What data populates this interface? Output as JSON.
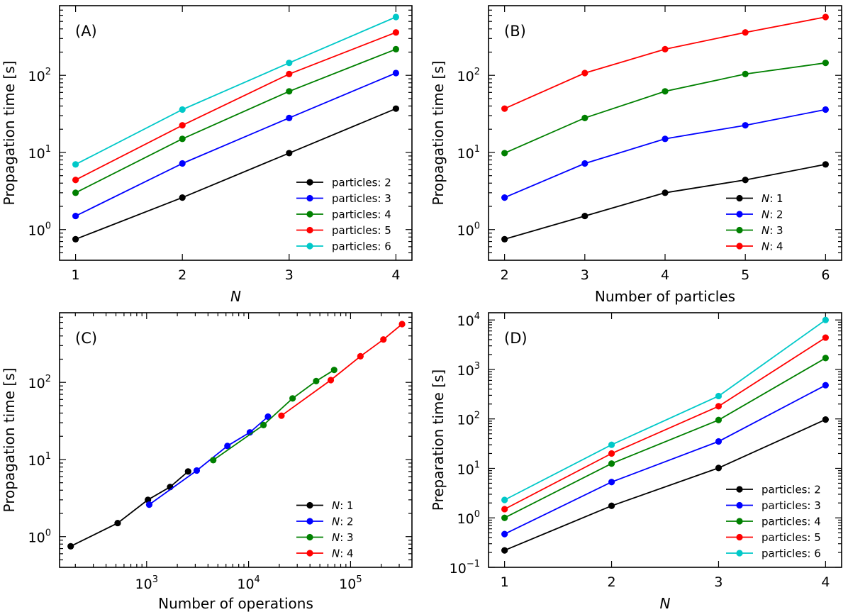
{
  "chart_data": [
    {
      "id": "A",
      "type": "line",
      "panel_label": "(A)",
      "xlabel": "N",
      "xlabel_italic": true,
      "ylabel": "Propagation time [s]",
      "xscale": "linear",
      "yscale": "log",
      "xlim": [
        0.85,
        4.15
      ],
      "ylim": [
        0.4,
        800
      ],
      "xticks": [
        {
          "v": 1,
          "label": "1"
        },
        {
          "v": 2,
          "label": "2"
        },
        {
          "v": 3,
          "label": "3"
        },
        {
          "v": 4,
          "label": "4"
        }
      ],
      "yticks": [
        {
          "v": 1,
          "base": "10",
          "exp": "0"
        },
        {
          "v": 10,
          "base": "10",
          "exp": "1"
        },
        {
          "v": 100,
          "base": "10",
          "exp": "2"
        }
      ],
      "legend_position": "lower-right",
      "series": [
        {
          "name": "particles: 2",
          "color": "#000000",
          "x": [
            1,
            2,
            3,
            4
          ],
          "y": [
            0.75,
            2.6,
            9.8,
            37
          ]
        },
        {
          "name": "particles: 3",
          "color": "#0000ff",
          "x": [
            1,
            2,
            3,
            4
          ],
          "y": [
            1.5,
            7.2,
            28,
            107
          ]
        },
        {
          "name": "particles: 4",
          "color": "#008000",
          "x": [
            1,
            2,
            3,
            4
          ],
          "y": [
            3.0,
            15,
            62,
            218
          ]
        },
        {
          "name": "particles: 5",
          "color": "#ff0000",
          "x": [
            1,
            2,
            3,
            4
          ],
          "y": [
            4.4,
            22.5,
            104,
            360
          ]
        },
        {
          "name": "particles: 6",
          "color": "#00c8c8",
          "x": [
            1,
            2,
            3,
            4
          ],
          "y": [
            7.0,
            36,
            145,
            570
          ]
        }
      ]
    },
    {
      "id": "B",
      "type": "line",
      "panel_label": "(B)",
      "xlabel": "Number of particles",
      "xlabel_italic": false,
      "ylabel": "Propagation time [s]",
      "xscale": "linear",
      "yscale": "log",
      "xlim": [
        1.8,
        6.2
      ],
      "ylim": [
        0.4,
        800
      ],
      "xticks": [
        {
          "v": 2,
          "label": "2"
        },
        {
          "v": 3,
          "label": "3"
        },
        {
          "v": 4,
          "label": "4"
        },
        {
          "v": 5,
          "label": "5"
        },
        {
          "v": 6,
          "label": "6"
        }
      ],
      "yticks": [
        {
          "v": 1,
          "base": "10",
          "exp": "0"
        },
        {
          "v": 10,
          "base": "10",
          "exp": "1"
        },
        {
          "v": 100,
          "base": "10",
          "exp": "2"
        }
      ],
      "legend_position": "lower-right",
      "series": [
        {
          "name": "N: 1",
          "name_var": "N",
          "name_rest": ": 1",
          "color": "#000000",
          "x": [
            2,
            3,
            4,
            5,
            6
          ],
          "y": [
            0.75,
            1.5,
            3.0,
            4.4,
            7.0
          ]
        },
        {
          "name": "N: 2",
          "name_var": "N",
          "name_rest": ": 2",
          "color": "#0000ff",
          "x": [
            2,
            3,
            4,
            5,
            6
          ],
          "y": [
            2.6,
            7.2,
            15,
            22.5,
            36
          ]
        },
        {
          "name": "N: 3",
          "name_var": "N",
          "name_rest": ": 3",
          "color": "#008000",
          "x": [
            2,
            3,
            4,
            5,
            6
          ],
          "y": [
            9.8,
            28,
            62,
            104,
            145
          ]
        },
        {
          "name": "N: 4",
          "name_var": "N",
          "name_rest": ": 4",
          "color": "#ff0000",
          "x": [
            2,
            3,
            4,
            5,
            6
          ],
          "y": [
            37,
            107,
            218,
            360,
            570
          ]
        }
      ]
    },
    {
      "id": "C",
      "type": "line",
      "panel_label": "(C)",
      "xlabel": "Number of operations",
      "xlabel_italic": false,
      "ylabel": "Propagation time [s]",
      "xscale": "log",
      "yscale": "log",
      "xlim": [
        140,
        400000
      ],
      "ylim": [
        0.4,
        800
      ],
      "xticks": [
        {
          "v": 1000,
          "base": "10",
          "exp": "3"
        },
        {
          "v": 10000,
          "base": "10",
          "exp": "4"
        },
        {
          "v": 100000,
          "base": "10",
          "exp": "5"
        }
      ],
      "yticks": [
        {
          "v": 1,
          "base": "10",
          "exp": "0"
        },
        {
          "v": 10,
          "base": "10",
          "exp": "1"
        },
        {
          "v": 100,
          "base": "10",
          "exp": "2"
        }
      ],
      "legend_position": "lower-right",
      "series": [
        {
          "name": "N: 1",
          "name_var": "N",
          "name_rest": ": 1",
          "color": "#000000",
          "x": [
            180,
            520,
            1030,
            1700,
            2550
          ],
          "y": [
            0.75,
            1.5,
            3.0,
            4.4,
            7.0
          ]
        },
        {
          "name": "N: 2",
          "name_var": "N",
          "name_rest": ": 2",
          "color": "#0000ff",
          "x": [
            1060,
            3100,
            6200,
            10300,
            15500
          ],
          "y": [
            2.6,
            7.2,
            15,
            22.5,
            36
          ]
        },
        {
          "name": "N: 3",
          "name_var": "N",
          "name_rest": ": 3",
          "color": "#008000",
          "x": [
            4500,
            14000,
            27000,
            46000,
            69000
          ],
          "y": [
            9.8,
            28,
            62,
            104,
            145
          ]
        },
        {
          "name": "N: 4",
          "name_var": "N",
          "name_rest": ": 4",
          "color": "#ff0000",
          "x": [
            21000,
            64000,
            125000,
            210000,
            320000
          ],
          "y": [
            37,
            107,
            218,
            360,
            570
          ]
        }
      ]
    },
    {
      "id": "D",
      "type": "line",
      "panel_label": "(D)",
      "xlabel": "N",
      "xlabel_italic": true,
      "ylabel": "Preparation time [s]",
      "xscale": "linear",
      "yscale": "log",
      "xlim": [
        0.85,
        4.15
      ],
      "ylim": [
        0.1,
        14000
      ],
      "xticks": [
        {
          "v": 1,
          "label": "1"
        },
        {
          "v": 2,
          "label": "2"
        },
        {
          "v": 3,
          "label": "3"
        },
        {
          "v": 4,
          "label": "4"
        }
      ],
      "yticks": [
        {
          "v": 0.1,
          "base": "10",
          "exp": "−1"
        },
        {
          "v": 1,
          "base": "10",
          "exp": "0"
        },
        {
          "v": 10,
          "base": "10",
          "exp": "1"
        },
        {
          "v": 100,
          "base": "10",
          "exp": "2"
        },
        {
          "v": 1000,
          "base": "10",
          "exp": "3"
        },
        {
          "v": 10000,
          "base": "10",
          "exp": "4"
        }
      ],
      "legend_position": "lower-right",
      "series": [
        {
          "name": "particles: 2",
          "color": "#000000",
          "x": [
            1,
            2,
            3,
            4
          ],
          "y": [
            0.22,
            1.75,
            10.2,
            97
          ]
        },
        {
          "name": "particles: 3",
          "color": "#0000ff",
          "x": [
            1,
            2,
            3,
            4
          ],
          "y": [
            0.47,
            5.3,
            35,
            480
          ]
        },
        {
          "name": "particles: 4",
          "color": "#008000",
          "x": [
            1,
            2,
            3,
            4
          ],
          "y": [
            1.0,
            12.5,
            95,
            1700
          ]
        },
        {
          "name": "particles: 5",
          "color": "#ff0000",
          "x": [
            1,
            2,
            3,
            4
          ],
          "y": [
            1.5,
            20,
            180,
            4400
          ]
        },
        {
          "name": "particles: 6",
          "color": "#00c8c8",
          "x": [
            1,
            2,
            3,
            4
          ],
          "y": [
            2.3,
            30,
            290,
            10000
          ]
        }
      ]
    }
  ]
}
